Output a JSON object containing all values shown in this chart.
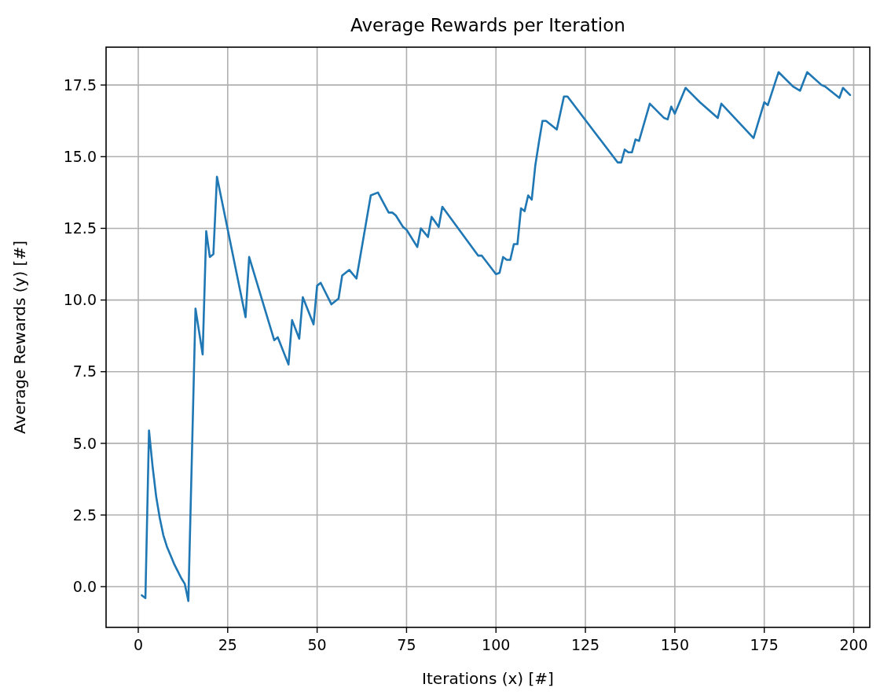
{
  "chart_data": {
    "type": "line",
    "title": "Average Rewards per Iteration",
    "xlabel": "Iterations (x) [#]",
    "ylabel": "Average Rewards (y) [#]",
    "x": [
      1,
      2,
      3,
      4,
      5,
      6,
      7,
      8,
      9,
      10,
      11,
      12,
      13,
      14,
      16,
      18,
      19,
      20,
      21,
      22,
      30,
      31,
      38,
      39,
      42,
      43,
      45,
      46,
      49,
      50,
      51,
      54,
      56,
      57,
      59,
      61,
      65,
      67,
      70,
      71,
      72,
      74,
      75,
      78,
      79,
      81,
      82,
      84,
      85,
      95,
      96,
      100,
      101,
      102,
      103,
      104,
      105,
      106,
      107,
      108,
      109,
      110,
      111,
      112,
      113,
      114,
      117,
      119,
      120,
      134,
      135,
      136,
      137,
      138,
      139,
      140,
      143,
      147,
      148,
      149,
      150,
      153,
      155,
      157,
      162,
      163,
      172,
      175,
      176,
      179,
      183,
      185,
      187,
      191,
      192,
      196,
      197,
      199
    ],
    "series": [
      {
        "color": "#1f77b4",
        "values": [
          -0.3,
          -0.4,
          5.45,
          4.2,
          3.15,
          2.4,
          1.8,
          1.4,
          1.1,
          0.8,
          0.55,
          0.3,
          0.1,
          -0.5,
          9.7,
          8.1,
          12.4,
          11.5,
          11.6,
          14.3,
          9.4,
          11.5,
          8.6,
          8.7,
          7.75,
          9.3,
          8.65,
          10.1,
          9.15,
          10.5,
          10.6,
          9.85,
          10.05,
          10.85,
          11.05,
          10.75,
          13.65,
          13.75,
          13.05,
          13.05,
          12.95,
          12.55,
          12.45,
          11.85,
          12.5,
          12.2,
          12.9,
          12.55,
          13.25,
          11.55,
          11.55,
          10.9,
          10.95,
          11.5,
          11.4,
          11.4,
          11.95,
          11.95,
          13.2,
          13.1,
          13.65,
          13.5,
          14.7,
          15.5,
          16.25,
          16.25,
          15.95,
          17.1,
          17.1,
          14.8,
          14.8,
          15.25,
          15.15,
          15.15,
          15.6,
          15.55,
          16.85,
          16.35,
          16.3,
          16.75,
          16.5,
          17.4,
          17.15,
          16.9,
          16.35,
          16.85,
          15.65,
          16.9,
          16.8,
          17.95,
          17.45,
          17.3,
          17.95,
          17.5,
          17.45,
          17.05,
          17.4,
          17.15
        ]
      }
    ],
    "xlim": [
      -9,
      204.5
    ],
    "ylim": [
      -1.42,
      18.82
    ],
    "xticks": [
      0,
      25,
      50,
      75,
      100,
      125,
      150,
      175,
      200
    ],
    "yticks": [
      {
        "value": 0,
        "label": "0.0"
      },
      {
        "value": 2.5,
        "label": "2.5"
      },
      {
        "value": 5,
        "label": "5.0"
      },
      {
        "value": 7.5,
        "label": "7.5"
      },
      {
        "value": 10,
        "label": "10.0"
      },
      {
        "value": 12.5,
        "label": "12.5"
      },
      {
        "value": 15,
        "label": "15.0"
      },
      {
        "value": 17.5,
        "label": "17.5"
      }
    ],
    "grid": true,
    "marker": "none",
    "line_style": "solid"
  }
}
